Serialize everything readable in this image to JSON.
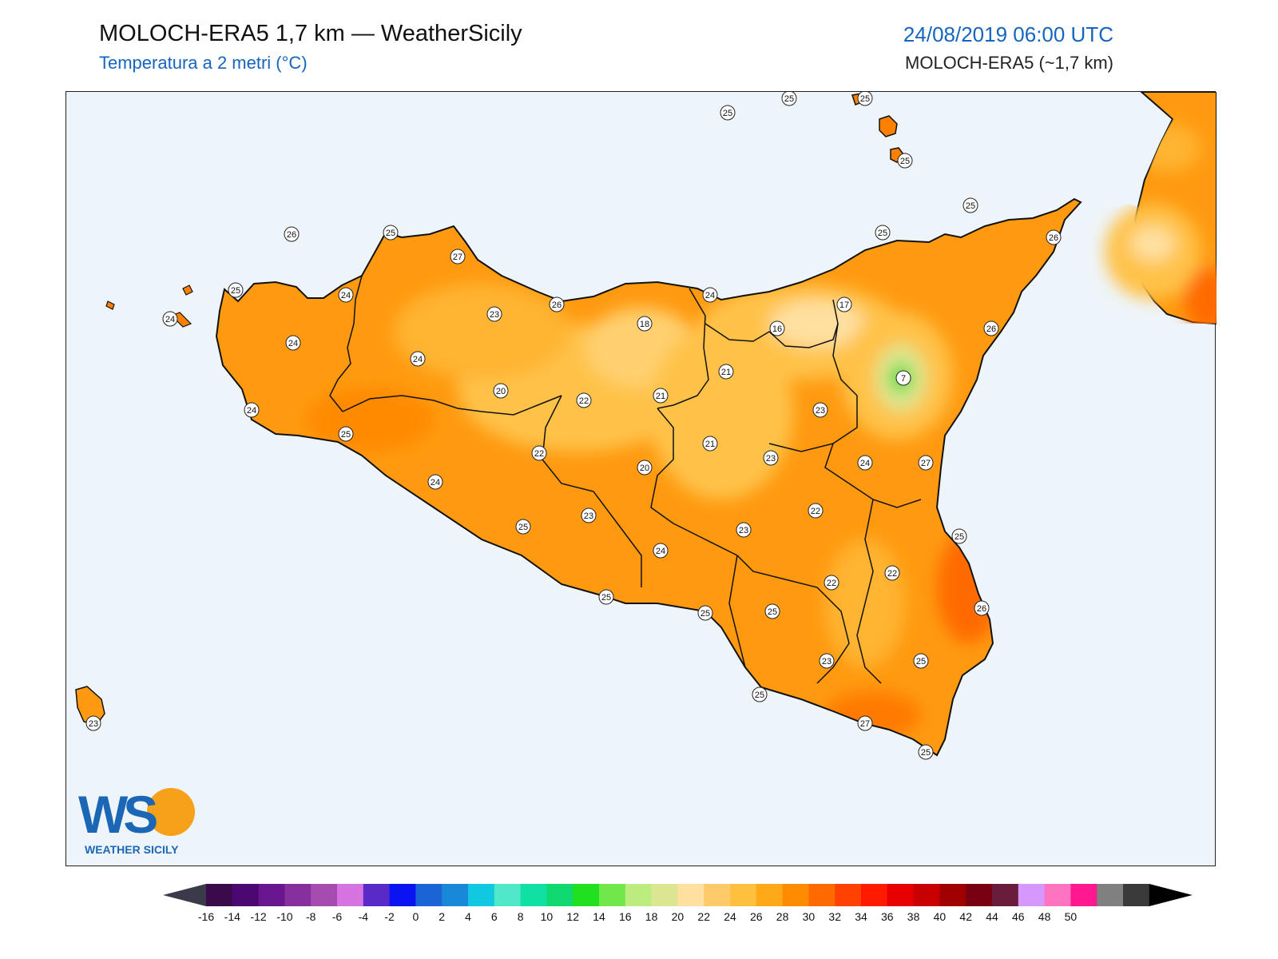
{
  "header": {
    "title": "MOLOCH-ERA5 1,7 km — WeatherSicily",
    "subtitle": "Temperatura a 2 metri (°C)",
    "datetime": "24/08/2019 06:00 UTC",
    "model": "MOLOCH-ERA5 (~1,7 km)"
  },
  "logo": {
    "text": "WS",
    "caption": "WEATHER SICILY"
  },
  "colorbar": {
    "ticks": [
      "-16",
      "-14",
      "-12",
      "-10",
      "-8",
      "-6",
      "-4",
      "-2",
      "0",
      "2",
      "4",
      "6",
      "8",
      "10",
      "12",
      "14",
      "16",
      "18",
      "20",
      "22",
      "24",
      "26",
      "28",
      "30",
      "32",
      "34",
      "36",
      "38",
      "40",
      "42",
      "44",
      "46",
      "48",
      "50"
    ],
    "colors": [
      "#3a0a4a",
      "#4a0870",
      "#6a1690",
      "#86309e",
      "#a64cb0",
      "#d574e0",
      "#5a2ac8",
      "#0a14f0",
      "#1a64d6",
      "#1a88d8",
      "#10c8e0",
      "#50e8c8",
      "#10e0a4",
      "#10d870",
      "#20e020",
      "#70e84a",
      "#bcec80",
      "#dce690",
      "#ffe0a0",
      "#ffca6a",
      "#ffc040",
      "#ffa818",
      "#ff8c00",
      "#ff6a00",
      "#ff4200",
      "#ff1a00",
      "#e80000",
      "#c80000",
      "#a00000",
      "#780010",
      "#6a1c3c",
      "#d498ff",
      "#ff74c0",
      "#ff1890",
      "#808080",
      "#3a3a3a"
    ],
    "under_color": "#3a3a4a",
    "over_color": "#000000"
  },
  "stations": [
    {
      "v": "25"
    },
    {
      "v": "25"
    },
    {
      "v": "25"
    },
    {
      "v": "25"
    },
    {
      "v": "25"
    },
    {
      "v": "25"
    },
    {
      "v": "26"
    },
    {
      "v": "26"
    },
    {
      "v": "25"
    },
    {
      "v": "27"
    },
    {
      "v": "25"
    },
    {
      "v": "24"
    },
    {
      "v": "24"
    },
    {
      "v": "23"
    },
    {
      "v": "26"
    },
    {
      "v": "24"
    },
    {
      "v": "17"
    },
    {
      "v": "18"
    },
    {
      "v": "16"
    },
    {
      "v": "26"
    },
    {
      "v": "24"
    },
    {
      "v": "24"
    },
    {
      "v": "21"
    },
    {
      "v": "7"
    },
    {
      "v": "20"
    },
    {
      "v": "22"
    },
    {
      "v": "21"
    },
    {
      "v": "23"
    },
    {
      "v": "24"
    },
    {
      "v": "25"
    },
    {
      "v": "22"
    },
    {
      "v": "21"
    },
    {
      "v": "23"
    },
    {
      "v": "24"
    },
    {
      "v": "27"
    },
    {
      "v": "20"
    },
    {
      "v": "24"
    },
    {
      "v": "22"
    },
    {
      "v": "25"
    },
    {
      "v": "23"
    },
    {
      "v": "23"
    },
    {
      "v": "25"
    },
    {
      "v": "24"
    },
    {
      "v": "22"
    },
    {
      "v": "22"
    },
    {
      "v": "25"
    },
    {
      "v": "25"
    },
    {
      "v": "26"
    },
    {
      "v": "23"
    },
    {
      "v": "25"
    },
    {
      "v": "25"
    },
    {
      "v": "27"
    },
    {
      "v": "25"
    },
    {
      "v": "23"
    },
    {
      "v": "25"
    }
  ]
}
